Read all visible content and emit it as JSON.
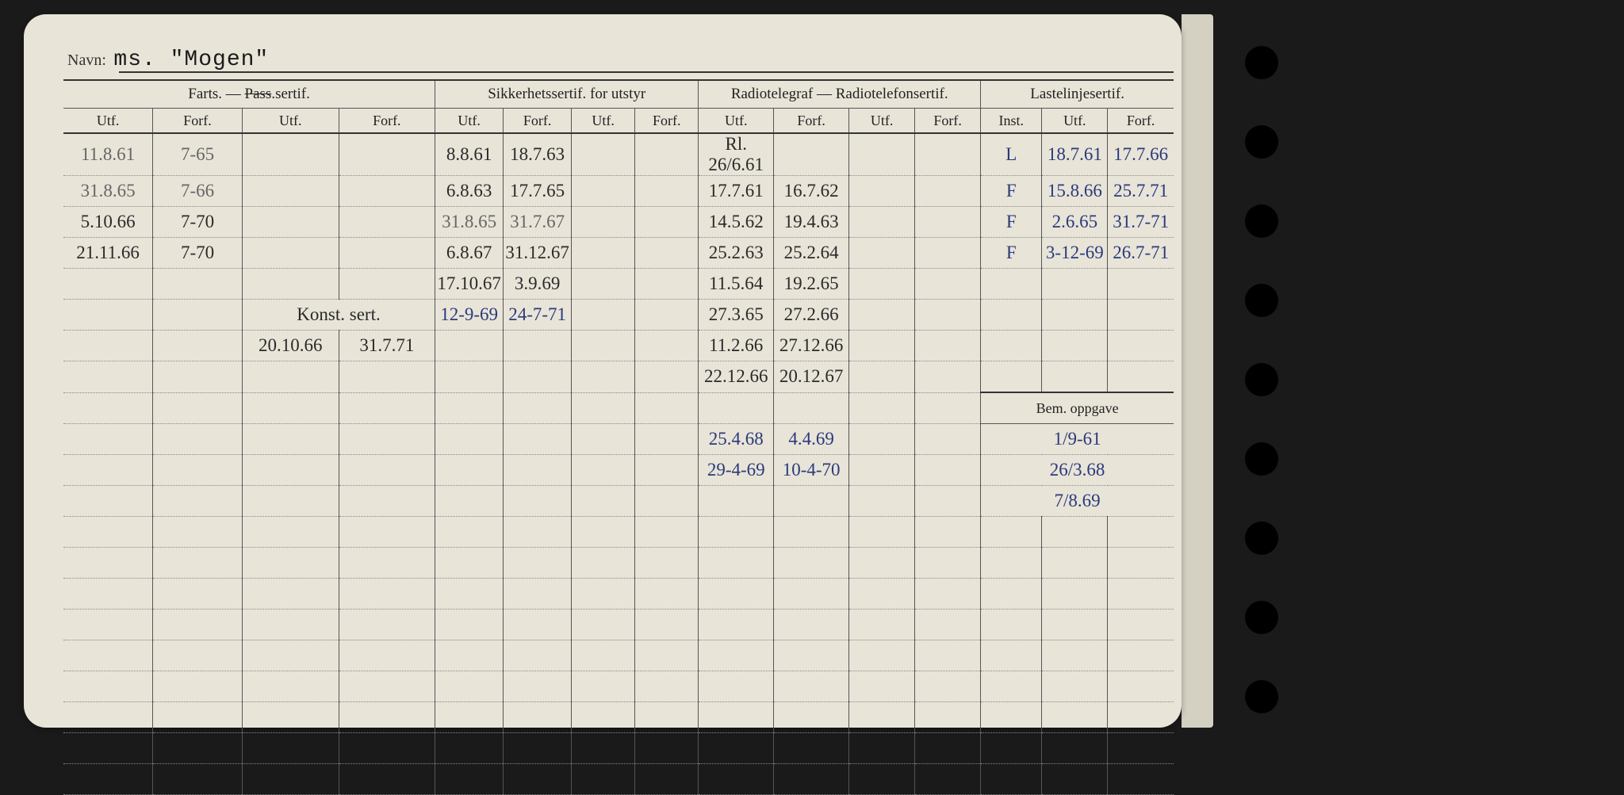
{
  "card": {
    "navn_label": "Navn:",
    "navn_value": "ms. \"Mogen\""
  },
  "headers": {
    "group": [
      "Farts. — Pass.sertif.",
      "Sikkerhetssertif. for utstyr",
      "Radiotelegraf — Radiotelefonsertif.",
      "Lastelinjesertif."
    ],
    "sub": [
      "Utf.",
      "Forf.",
      "Utf.",
      "Forf.",
      "Utf.",
      "Forf.",
      "Utf.",
      "Forf.",
      "Utf.",
      "Forf.",
      "Utf.",
      "Forf.",
      "Inst.",
      "Utf.",
      "Forf."
    ],
    "bem": "Bem. oppgave"
  },
  "rows": [
    {
      "c1": "11.8.61",
      "c2": "7-65",
      "c5": "8.8.61",
      "c6": "18.7.63",
      "c9": "Rl. 26/6.61",
      "c13": "L",
      "c14": "18.7.61",
      "c15": "17.7.66"
    },
    {
      "c1": "31.8.65",
      "c2": "7-66",
      "c5": "6.8.63",
      "c6": "17.7.65",
      "c9": "17.7.61",
      "c10": "16.7.62",
      "c13": "F",
      "c14": "15.8.66",
      "c15": "25.7.71"
    },
    {
      "c1": "5.10.66",
      "c2": "7-70",
      "c5": "31.8.65",
      "c6": "31.7.67",
      "c9": "14.5.62",
      "c10": "19.4.63",
      "c13": "F",
      "c14": "2.6.65",
      "c15": "31.7-71"
    },
    {
      "c1": "21.11.66",
      "c2": "7-70",
      "c5": "6.8.67",
      "c6": "31.12.67",
      "c9": "25.2.63",
      "c10": "25.2.64",
      "c13": "F",
      "c14": "3-12-69",
      "c15": "26.7-71"
    },
    {
      "c5": "17.10.67",
      "c6": "3.9.69",
      "c9": "11.5.64",
      "c10": "19.2.65"
    },
    {
      "c3": "Konst. sert.",
      "c5": "12-9-69",
      "c6": "24-7-71",
      "c9": "27.3.65",
      "c10": "27.2.66"
    },
    {
      "c3": "20.10.66",
      "c4": "31.7.71",
      "c9": "11.2.66",
      "c10": "27.12.66"
    },
    {
      "c9": "22.12.66",
      "c10": "20.12.67"
    },
    {
      "c9": "25.4.68",
      "c10": "4.4.69",
      "c13": "1/9-61",
      "bem": true
    },
    {
      "c9": "29-4-69",
      "c10": "10-4-70",
      "c13": "26/3.68",
      "bem": true
    },
    {
      "c13": "7/8.69",
      "bem": true
    },
    {},
    {},
    {},
    {},
    {},
    {},
    {},
    {},
    {}
  ],
  "holes": [
    58,
    158,
    258,
    358,
    458,
    558,
    658,
    758,
    858
  ]
}
